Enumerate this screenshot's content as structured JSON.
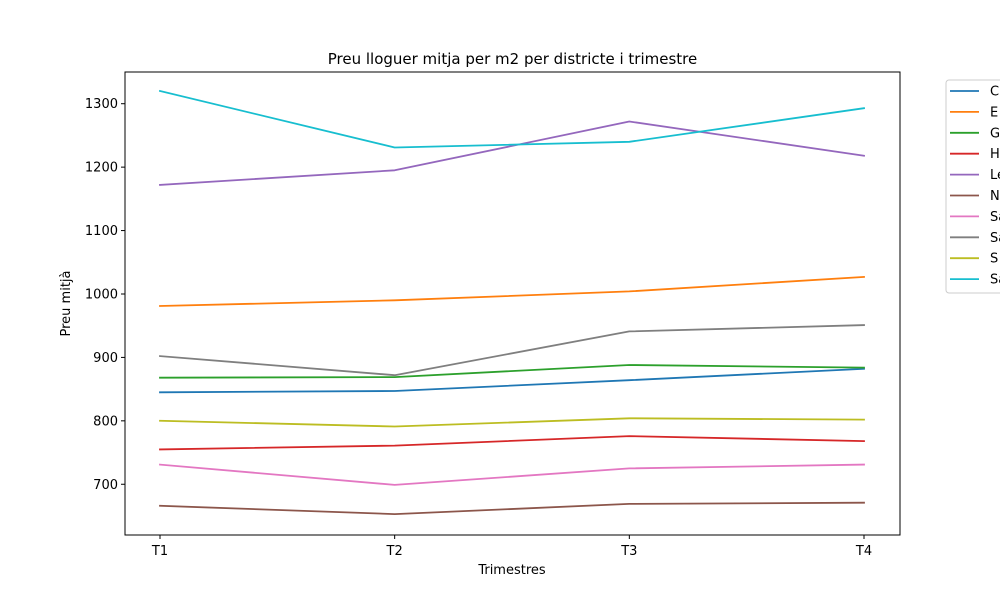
{
  "chart_data": {
    "type": "line",
    "title": "Preu lloguer mitja per m2 per districte i trimestre",
    "xlabel": "Trimestres",
    "ylabel": "Preu mitjà",
    "categories": [
      "T1",
      "T2",
      "T3",
      "T4"
    ],
    "ylim": [
      620,
      1350
    ],
    "yticks": [
      700,
      800,
      900,
      1000,
      1100,
      1200,
      1300
    ],
    "grid": false,
    "legend_position": "outside-right",
    "series": [
      {
        "name": "C",
        "color": "#1f77b4",
        "values": [
          845,
          847,
          864,
          882
        ]
      },
      {
        "name": "E",
        "color": "#ff7f0e",
        "values": [
          981,
          990,
          1004,
          1027
        ]
      },
      {
        "name": "G",
        "color": "#2ca02c",
        "values": [
          868,
          869,
          888,
          884
        ]
      },
      {
        "name": "H",
        "color": "#d62728",
        "values": [
          755,
          761,
          776,
          768
        ]
      },
      {
        "name": "Le",
        "color": "#9467bd",
        "values": [
          1172,
          1195,
          1272,
          1218
        ]
      },
      {
        "name": "N",
        "color": "#8c564b",
        "values": [
          666,
          653,
          669,
          671
        ]
      },
      {
        "name": "Sa",
        "color": "#e377c2",
        "values": [
          731,
          699,
          725,
          731
        ]
      },
      {
        "name": "Sa",
        "color": "#7f7f7f",
        "values": [
          902,
          872,
          941,
          951
        ]
      },
      {
        "name": "S",
        "color": "#bcbd22",
        "values": [
          800,
          791,
          804,
          802
        ]
      },
      {
        "name": "Sa",
        "color": "#17becf",
        "values": [
          1320,
          1231,
          1240,
          1293
        ]
      }
    ]
  }
}
